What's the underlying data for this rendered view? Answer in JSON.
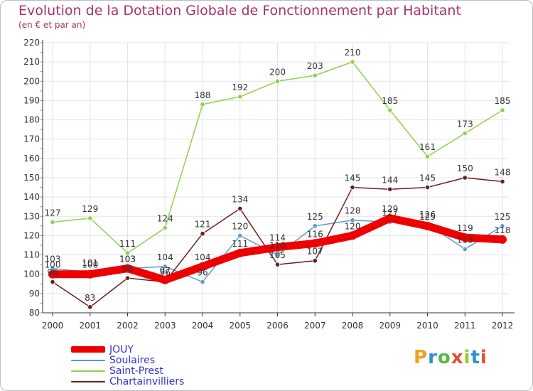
{
  "header": {
    "title": "Evolution de la Dotation Globale de Fonctionnement par Habitant",
    "subtitle": "(en € et par an)"
  },
  "brand": {
    "logo_text": "Proxiti",
    "logo_colors": [
      "#f2a11c",
      "#2f8fd0",
      "#56b847",
      "#e0522c",
      "#9bc634",
      "#2f8fd0",
      "#e0522c"
    ]
  },
  "colors": {
    "grid": "#e3e3e3",
    "axis": "#333333",
    "tick_marks": "#d08aa0",
    "label_text": "#333333"
  },
  "chart_data": {
    "type": "line",
    "x": [
      "2000",
      "2001",
      "2002",
      "2003",
      "2004",
      "2005",
      "2006",
      "2007",
      "2008",
      "2009",
      "2010",
      "2011",
      "2012"
    ],
    "ylim": [
      80,
      220
    ],
    "yticks": [
      80,
      90,
      100,
      110,
      120,
      130,
      140,
      150,
      160,
      170,
      180,
      190,
      200,
      210,
      220
    ],
    "grid": true,
    "legend": "bottom-left",
    "series": [
      {
        "name": "JOUY",
        "color": "#ee0000",
        "style": "thick",
        "values": [
          100,
          100,
          103,
          97,
          104,
          111,
          114,
          116,
          120,
          129,
          125,
          119,
          118
        ]
      },
      {
        "name": "Soulaires",
        "color": "#5b9bd5",
        "style": "thin",
        "values": [
          103,
          101,
          103,
          104,
          96,
          120,
          110,
          125,
          128,
          127,
          126,
          113,
          125
        ]
      },
      {
        "name": "Saint-Prest",
        "color": "#8fd14f",
        "style": "thin",
        "values": [
          127,
          129,
          111,
          124,
          188,
          192,
          200,
          203,
          210,
          185,
          161,
          173,
          185
        ]
      },
      {
        "name": "Chartainvilliers",
        "color": "#6b1e1e",
        "style": "thin",
        "values": [
          96,
          83,
          98,
          96,
          121,
          134,
          105,
          107,
          145,
          144,
          145,
          150,
          148
        ]
      }
    ],
    "data_labels": [
      {
        "series": "JOUY",
        "labels": [
          "100",
          "100",
          "103",
          "97",
          "104",
          "111",
          "114",
          "116",
          "120",
          "129",
          "125",
          "119",
          "118"
        ]
      },
      {
        "series": "Soulaires",
        "labels": [
          "103",
          "101",
          "103",
          "104",
          "96",
          "120",
          "110",
          "125",
          "128",
          "127",
          "126",
          "113",
          "125"
        ]
      },
      {
        "series": "Saint-Prest",
        "labels": [
          "127",
          "129",
          "111",
          "124",
          "188",
          "192",
          "200",
          "203",
          "210",
          "185",
          "161",
          "173",
          "185"
        ]
      },
      {
        "series": "Chartainvilliers",
        "labels": [
          "96",
          "83",
          "98",
          "96",
          "121",
          "134",
          "105",
          "107",
          "145",
          "144",
          "145",
          "150",
          "148"
        ]
      }
    ]
  }
}
